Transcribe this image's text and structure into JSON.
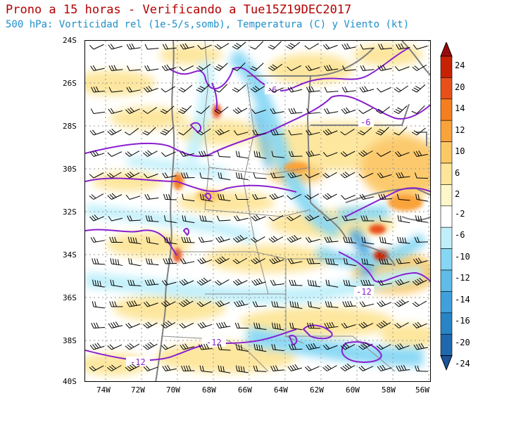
{
  "header": {
    "title": "Prono a 15 horas - Verificando a Tue15Z19DEC2017",
    "subtitle": "500 hPa: Vorticidad rel (1e-5/s,somb), Temperatura (C) y Viento (kt)"
  },
  "axes": {
    "lat_labels": [
      "24S",
      "26S",
      "28S",
      "30S",
      "32S",
      "34S",
      "36S",
      "38S",
      "40S"
    ],
    "lon_labels": [
      "74W",
      "72W",
      "70W",
      "68W",
      "66W",
      "64W",
      "62W",
      "60W",
      "58W",
      "56W"
    ]
  },
  "colorbar": {
    "ticks": [
      "24",
      "20",
      "14",
      "12",
      "10",
      "6",
      "2",
      "-2",
      "-6",
      "-10",
      "-12",
      "-14",
      "-16",
      "-20",
      "-24"
    ],
    "colors": [
      "#9b0a0a",
      "#c82205",
      "#e8501a",
      "#f57e1f",
      "#f9a33b",
      "#fcc866",
      "#fde599",
      "#fff7c9",
      "#ffffff",
      "#bfeffa",
      "#86d7f4",
      "#5fbbe8",
      "#3fa0db",
      "#2984c6",
      "#1f68ad",
      "#1a549c"
    ]
  },
  "contour_labels": [
    "-6",
    "-6",
    "-12",
    "-12",
    "-12"
  ],
  "icons": {
    "colorbar_up": "triangle-up",
    "colorbar_down": "triangle-down"
  }
}
